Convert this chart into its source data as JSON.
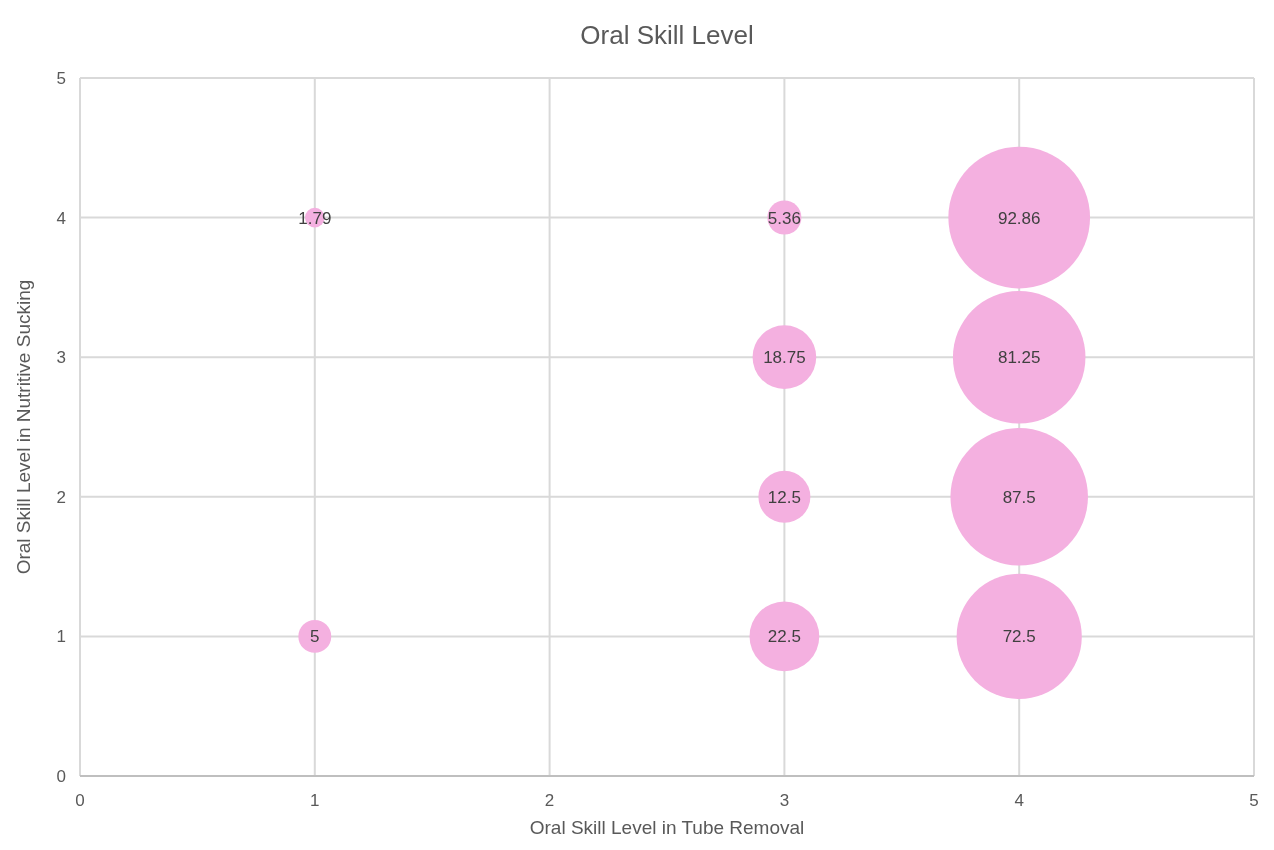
{
  "chart_data": {
    "type": "bubble",
    "title": "Oral Skill Level",
    "xlabel": "Oral Skill Level in Tube Removal",
    "ylabel": "Oral Skill Level in Nutritive Sucking",
    "x": [
      1,
      3,
      4,
      3,
      4,
      3,
      4,
      1,
      3,
      4
    ],
    "series": [
      {
        "color": "#f4b0e0",
        "values": [
          4,
          4,
          4,
          3,
          3,
          2,
          2,
          1,
          1,
          1
        ],
        "sizes": [
          1.79,
          5.36,
          92.86,
          18.75,
          81.25,
          12.5,
          87.5,
          5,
          22.5,
          72.5
        ],
        "value_labels": [
          "1.79",
          "5.36",
          "92.86",
          "18.75",
          "81.25",
          "12.5",
          "87.5",
          "5",
          "22.5",
          "72.5"
        ]
      }
    ],
    "xlim": [
      0,
      5
    ],
    "xticks": [
      0,
      1,
      2,
      3,
      4,
      5
    ],
    "ylim": [
      0,
      5
    ],
    "yticks": [
      0,
      1,
      2,
      3,
      4,
      5
    ],
    "grid": true
  }
}
